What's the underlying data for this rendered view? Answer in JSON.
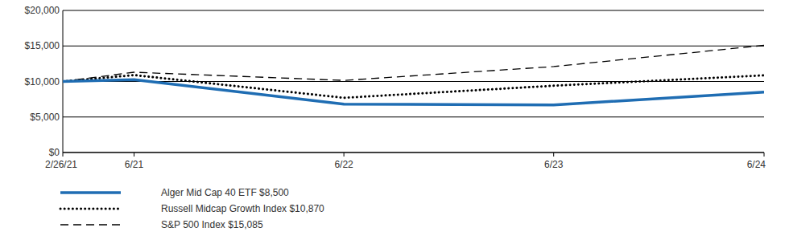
{
  "chart_data": {
    "type": "line",
    "x": [
      "2/26/21",
      "6/21",
      "6/22",
      "6/23",
      "6/24"
    ],
    "xlim": [
      "2/26/21",
      "6/24"
    ],
    "xticks": [
      "2/26/21",
      "6/21",
      "6/22",
      "6/23",
      "6/24"
    ],
    "ylim": [
      0,
      20000
    ],
    "yticks": [
      {
        "value": 0,
        "label": "$0"
      },
      {
        "value": 5000,
        "label": "$5,000"
      },
      {
        "value": 10000,
        "label": "$10,000"
      },
      {
        "value": 15000,
        "label": "$15,000"
      },
      {
        "value": 20000,
        "label": "$20,000"
      }
    ],
    "grid": true,
    "legend": "bottom-left",
    "series": [
      {
        "name": "Alger Mid Cap 40 ETF $8,500",
        "color": "#1f6db3",
        "line_style": "solid",
        "values": [
          10000,
          10250,
          6800,
          6700,
          8500
        ]
      },
      {
        "name": "Russell Midcap Growth Index $10,870",
        "color": "#000000",
        "line_style": "dotted",
        "values": [
          10000,
          10900,
          7700,
          9400,
          10870
        ]
      },
      {
        "name": "S&P 500 Index $15,085",
        "color": "#000000",
        "line_style": "dashed",
        "values": [
          10000,
          11300,
          10150,
          12100,
          15085
        ]
      }
    ]
  }
}
